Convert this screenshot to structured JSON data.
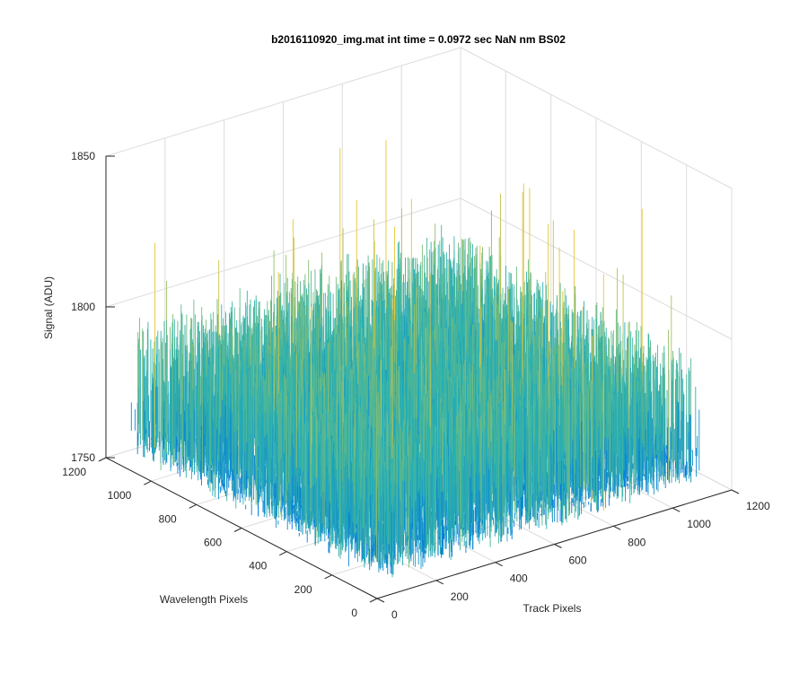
{
  "chart_data": {
    "type": "surface",
    "title": "b2016110920_img.mat int time = 0.0972 sec  NaN nm BS02",
    "xlabel": "Track Pixels",
    "ylabel": "Wavelength Pixels",
    "zlabel": "Signal (ADU)",
    "xlim": [
      0,
      1200
    ],
    "ylim": [
      0,
      1200
    ],
    "zlim": [
      1750,
      1850
    ],
    "x_ticks": [
      0,
      200,
      400,
      600,
      800,
      1000,
      1200
    ],
    "x_tick_labels": [
      "0",
      "200",
      "400",
      "600",
      "800",
      "1000",
      "1200"
    ],
    "y_ticks": [
      0,
      200,
      400,
      600,
      800,
      1000,
      1200
    ],
    "y_tick_labels": [
      "0",
      "200",
      "400",
      "600",
      "800",
      "1000",
      "1200"
    ],
    "z_ticks": [
      1750,
      1800,
      1850
    ],
    "z_tick_labels": [
      "1750",
      "1800",
      "1850"
    ],
    "surface": {
      "x_range": [
        0,
        1100
      ],
      "y_range": [
        0,
        1100
      ],
      "baseline_signal": 1775,
      "noise_min": 1758,
      "noise_max": 1800,
      "peak_signal": 1849,
      "colormap": "parula",
      "color_low": "#0072e3",
      "color_mid": "#2ab3b0",
      "color_high": "#e5c735"
    },
    "grid": true
  },
  "colors": {
    "axis": "#262626",
    "grid": "#dcdcdc",
    "background": "#ffffff"
  }
}
